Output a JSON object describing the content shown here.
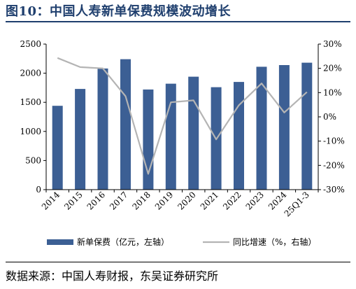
{
  "header": {
    "title": "图10：中国人寿新单保费规模波动增长"
  },
  "footer": {
    "source": "数据来源：中国人寿财报，东吴证券研究所"
  },
  "chart_data": {
    "type": "bar",
    "categories": [
      "2014",
      "2015",
      "2016",
      "2017",
      "2018",
      "2019",
      "2020",
      "2021",
      "2022",
      "2023",
      "2024",
      "25Q1-3"
    ],
    "series": [
      {
        "name": "新单保费（亿元，左轴）",
        "type": "bar",
        "axis": "left",
        "color": "#3c5f94",
        "values": [
          1440,
          1730,
          2080,
          2240,
          1720,
          1820,
          1940,
          1760,
          1850,
          2110,
          2140,
          2180
        ]
      },
      {
        "name": "同比增速（%，右轴）",
        "type": "line",
        "axis": "right",
        "color": "#b4b4b4",
        "values": [
          24.3,
          20.5,
          20.0,
          8.5,
          -23.5,
          6.0,
          6.8,
          -9.3,
          4.8,
          13.8,
          1.8,
          10.2
        ]
      }
    ],
    "yleft": {
      "ylim": [
        0,
        2500
      ],
      "ticks": [
        0,
        500,
        1000,
        1500,
        2000,
        2500
      ]
    },
    "yright": {
      "ylim": [
        -30,
        30
      ],
      "ticks": [
        "-30%",
        "-20%",
        "-10%",
        "0%",
        "10%",
        "20%",
        "30%"
      ]
    },
    "grid": false,
    "legend": "bottom"
  }
}
